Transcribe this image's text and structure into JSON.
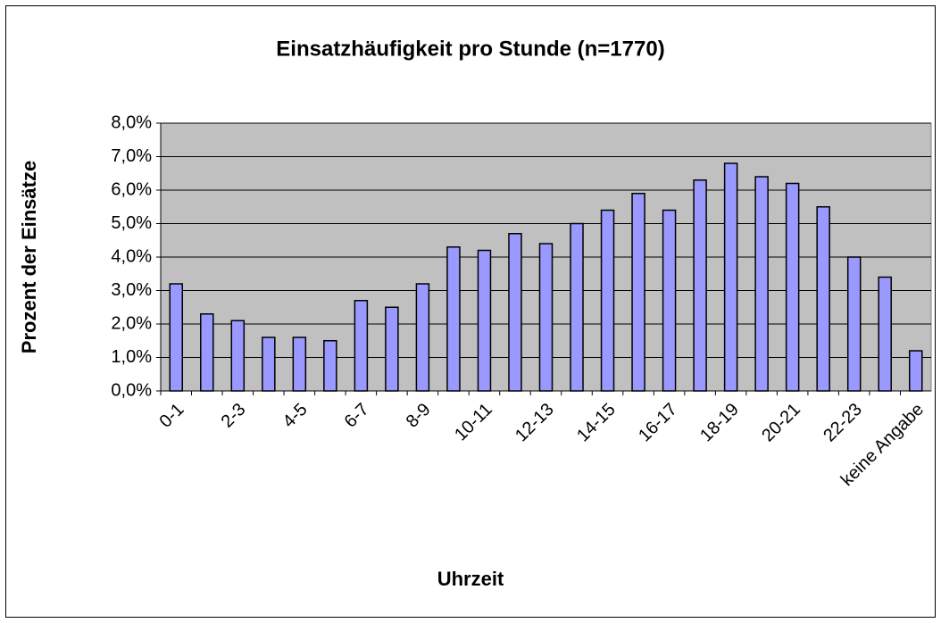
{
  "chart_data": {
    "type": "bar",
    "title": "Einsatzhäufigkeit pro Stunde (n=1770)",
    "x_label": "Uhrzeit",
    "y_label": "Prozent der Einsätze",
    "categories": [
      "0-1",
      null,
      "2-3",
      null,
      "4-5",
      null,
      "6-7",
      null,
      "8-9",
      null,
      "10-11",
      null,
      "12-13",
      null,
      "14-15",
      null,
      "16-17",
      null,
      "18-19",
      null,
      "20-21",
      null,
      "22-23",
      null,
      "keine Angabe"
    ],
    "values": [
      3.2,
      2.3,
      2.1,
      1.6,
      1.6,
      1.5,
      2.7,
      2.5,
      3.2,
      4.3,
      4.2,
      4.7,
      4.4,
      5.0,
      5.4,
      5.9,
      5.4,
      6.3,
      6.8,
      6.4,
      6.2,
      5.5,
      4.0,
      3.4,
      1.2
    ],
    "color": "#9999ff",
    "ylim": [
      0,
      8
    ],
    "yticks": [
      {
        "value": 0,
        "label": "0,0%"
      },
      {
        "value": 1,
        "label": "1,0%"
      },
      {
        "value": 2,
        "label": "2,0%"
      },
      {
        "value": 3,
        "label": "3,0%"
      },
      {
        "value": 4,
        "label": "4,0%"
      },
      {
        "value": 5,
        "label": "5,0%"
      },
      {
        "value": 6,
        "label": "6,0%"
      },
      {
        "value": 7,
        "label": "7,0%"
      },
      {
        "value": 8,
        "label": "8,0%"
      }
    ],
    "grid": true
  }
}
